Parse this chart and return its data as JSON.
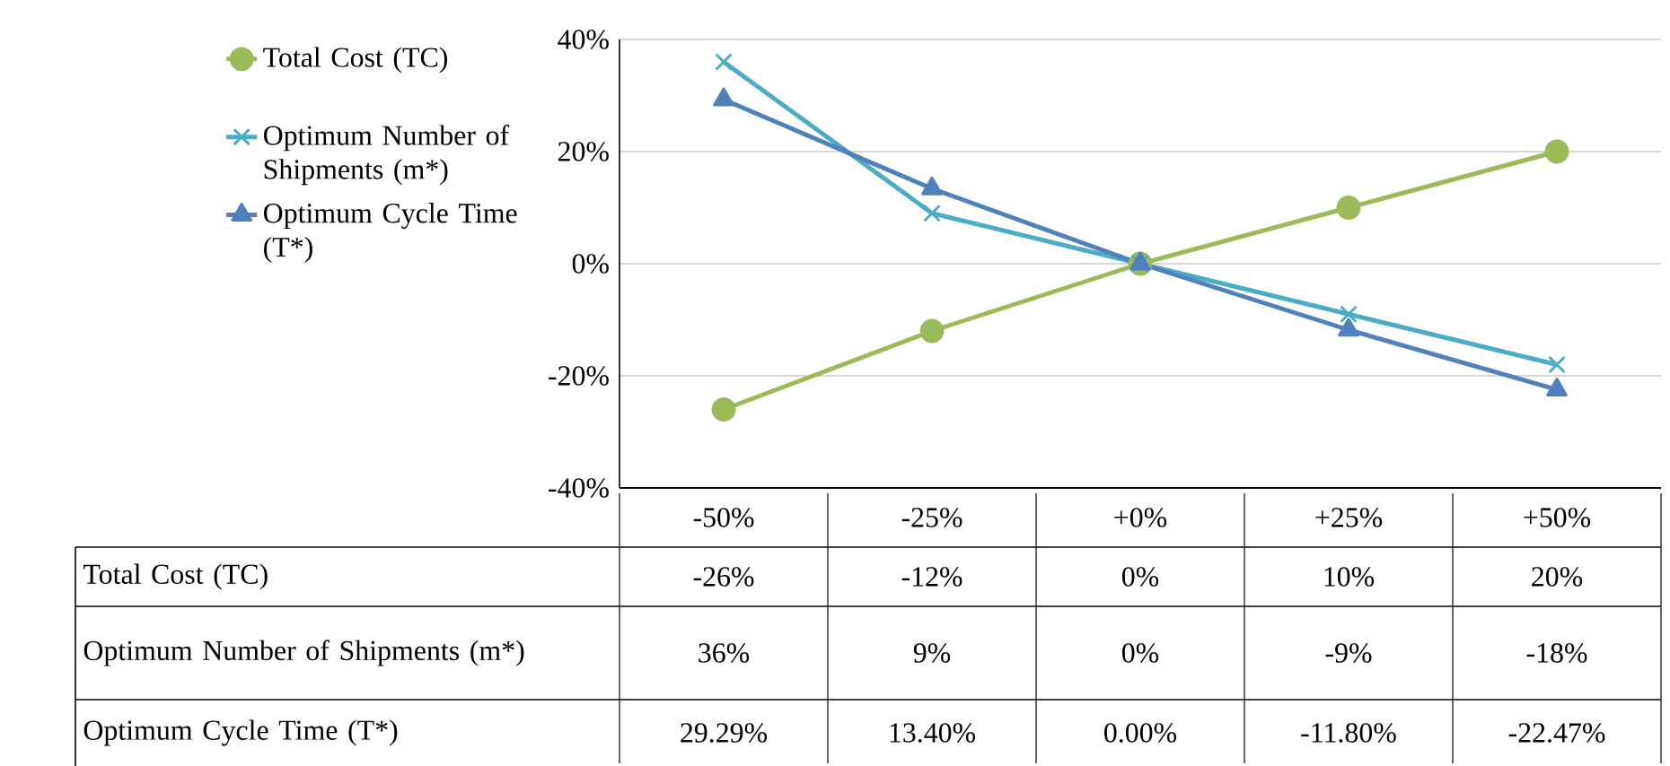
{
  "chart_data": {
    "type": "line",
    "categories": [
      "-50%",
      "-25%",
      "+0%",
      "+25%",
      "+50%"
    ],
    "series": [
      {
        "name": "Total Cost (TC)",
        "color": "#9bbb59",
        "marker": "circle",
        "values": [
          -26,
          -12,
          0,
          10,
          20
        ],
        "value_labels": [
          "-26%",
          "-12%",
          "0%",
          "10%",
          "20%"
        ]
      },
      {
        "name": "Optimum Number of Shipments (m*)",
        "color": "#4bacc6",
        "marker": "cross",
        "values": [
          36,
          9,
          0,
          -9,
          -18
        ],
        "value_labels": [
          "36%",
          "9%",
          "0%",
          "-9%",
          "-18%"
        ]
      },
      {
        "name": "Optimum Cycle Time (T*)",
        "color": "#4f81bd",
        "marker": "triangle",
        "values": [
          29.29,
          13.4,
          0.0,
          -11.8,
          -22.47
        ],
        "value_labels": [
          "29.29%",
          "13.40%",
          "0.00%",
          "-11.80%",
          "-22.47%"
        ]
      }
    ],
    "ylim": [
      -40,
      40
    ],
    "yticks": [
      {
        "value": -40,
        "label": "-40%"
      },
      {
        "value": -20,
        "label": "-20%"
      },
      {
        "value": 0,
        "label": "0%"
      },
      {
        "value": 20,
        "label": "20%"
      },
      {
        "value": 40,
        "label": "40%"
      }
    ],
    "grid": "y",
    "legend": "left"
  }
}
